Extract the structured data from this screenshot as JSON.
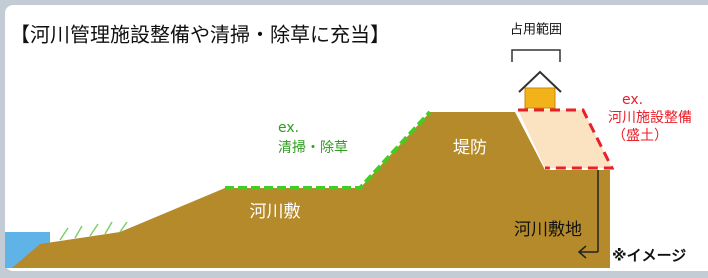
{
  "header": {
    "title": "【河川管理施設整備や清掃・除草に充当】"
  },
  "labels": {
    "occupancy": "占用範囲",
    "cleaning_ex": "ex.",
    "cleaning": "清掃・除草",
    "levee": "堤防",
    "riverbed": "河川敷",
    "facility_ex": "ex.",
    "facility": "河川施設整備",
    "fill": "（盛土）",
    "river_area": "河川敷地",
    "note": "※イメージ"
  }
}
